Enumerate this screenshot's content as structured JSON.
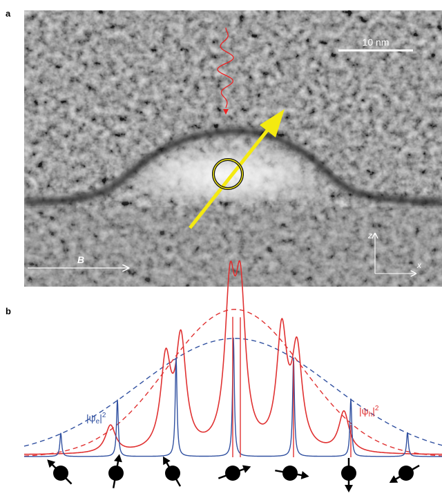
{
  "panels": {
    "a": {
      "label": "a",
      "scale_bar": "10 nm",
      "field": "B",
      "axis_z": "z",
      "axis_x": "x"
    },
    "b": {
      "label": "b",
      "electron": {
        "open": "|ψ",
        "sub": "e",
        "close": "|",
        "sup": "2"
      },
      "hole": {
        "open": "|ψ",
        "sub": "h",
        "close": "|",
        "sup": "2"
      }
    }
  }
}
